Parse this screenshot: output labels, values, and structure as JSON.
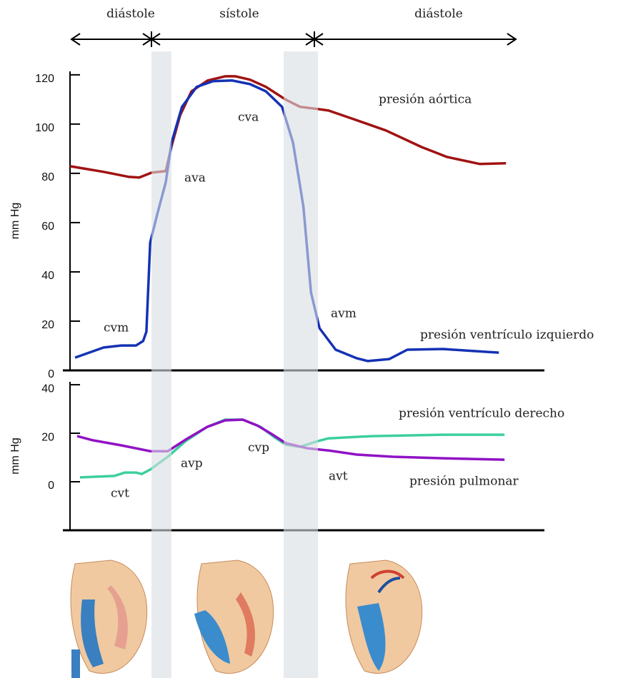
{
  "phases": [
    "diástole",
    "sístole",
    "diástole"
  ],
  "chart_data": [
    {
      "type": "line",
      "ylabel": "mm Hg",
      "xlim": [
        0,
        100
      ],
      "ylim": [
        0,
        121.4
      ],
      "yticks": [
        0,
        20,
        40,
        60,
        80,
        100,
        120
      ],
      "series": [
        {
          "name": "presión aórtica",
          "color": "#a01212",
          "x": [
            0,
            7.1,
            12.3,
            14.6,
            17.2,
            20.2,
            21.4,
            23.2,
            25.6,
            29.0,
            32.7,
            34.9,
            37.95,
            41.3,
            45.5,
            48.5,
            52.3,
            54.5,
            59.8,
            66.6,
            74.1,
            79.4,
            86.4,
            91.9
          ],
          "values": [
            82.9,
            80.6,
            78.6,
            78.3,
            80.3,
            80.9,
            91.0,
            103.5,
            113.3,
            117.7,
            119.4,
            119.4,
            118.0,
            115.1,
            109.9,
            107.0,
            106.1,
            105.5,
            102.0,
            97.4,
            90.7,
            86.7,
            83.8,
            84.1
          ]
        },
        {
          "name": "presión ventrículo izquierdo",
          "color": "#1432b4",
          "x": [
            1.05,
            7.1,
            10.8,
            13.9,
            15.4,
            16.1,
            16.9,
            18.4,
            20.2,
            21.4,
            23.6,
            26.7,
            30.1,
            34.2,
            37.95,
            41.3,
            44.7,
            47.0,
            49.2,
            50.8,
            52.6,
            56.0,
            60.5,
            62.8,
            67.3,
            71.1,
            78.6,
            83.1,
            90.4
          ],
          "values": [
            5.2,
            9.3,
            10.1,
            10.1,
            11.9,
            15.7,
            51.9,
            63.5,
            76.5,
            92.5,
            107.0,
            115.1,
            117.4,
            117.7,
            116.2,
            113.3,
            107.0,
            92.5,
            66.4,
            31.6,
            17.1,
            8.4,
            4.9,
            3.8,
            4.6,
            8.4,
            8.7,
            8.1,
            7.2
          ]
        }
      ],
      "annotations": [
        "cvm",
        "ava",
        "cva",
        "avm"
      ]
    },
    {
      "type": "line",
      "ylabel": "mm Hg",
      "xlim": [
        0,
        100
      ],
      "ylim": [
        -20,
        41.2
      ],
      "yticks": [
        0,
        20,
        40
      ],
      "series": [
        {
          "name": "presión ventrículo derecho",
          "color": "#3dcf9c",
          "x": [
            2.1,
            9.3,
            11.6,
            13.9,
            15.1,
            16.9,
            20.6,
            24.4,
            28.9,
            32.7,
            36.4,
            40.2,
            43.2,
            45.5,
            48.5,
            52.3,
            54.5,
            63.6,
            78.6,
            91.6
          ],
          "values": [
            1.8,
            2.4,
            3.8,
            3.8,
            3.2,
            5.0,
            10.3,
            16.8,
            22.6,
            25.6,
            25.6,
            22.6,
            18.2,
            15.3,
            14.4,
            16.8,
            17.9,
            18.8,
            19.4,
            19.4
          ]
        },
        {
          "name": "presión pulmonar",
          "color": "#9012c4",
          "x": [
            1.5,
            4.8,
            10.8,
            16.9,
            20.6,
            24.4,
            28.9,
            32.7,
            36.4,
            39.5,
            42.5,
            45.5,
            50.0,
            54.5,
            60.5,
            68.1,
            78.6,
            91.6
          ],
          "values": [
            18.8,
            17.1,
            15.0,
            12.6,
            12.6,
            17.4,
            22.6,
            25.3,
            25.6,
            23.2,
            19.7,
            15.9,
            13.8,
            12.9,
            11.2,
            10.3,
            9.7,
            9.1
          ]
        }
      ],
      "annotations": [
        "cvt",
        "avp",
        "cvp",
        "avt"
      ]
    }
  ]
}
